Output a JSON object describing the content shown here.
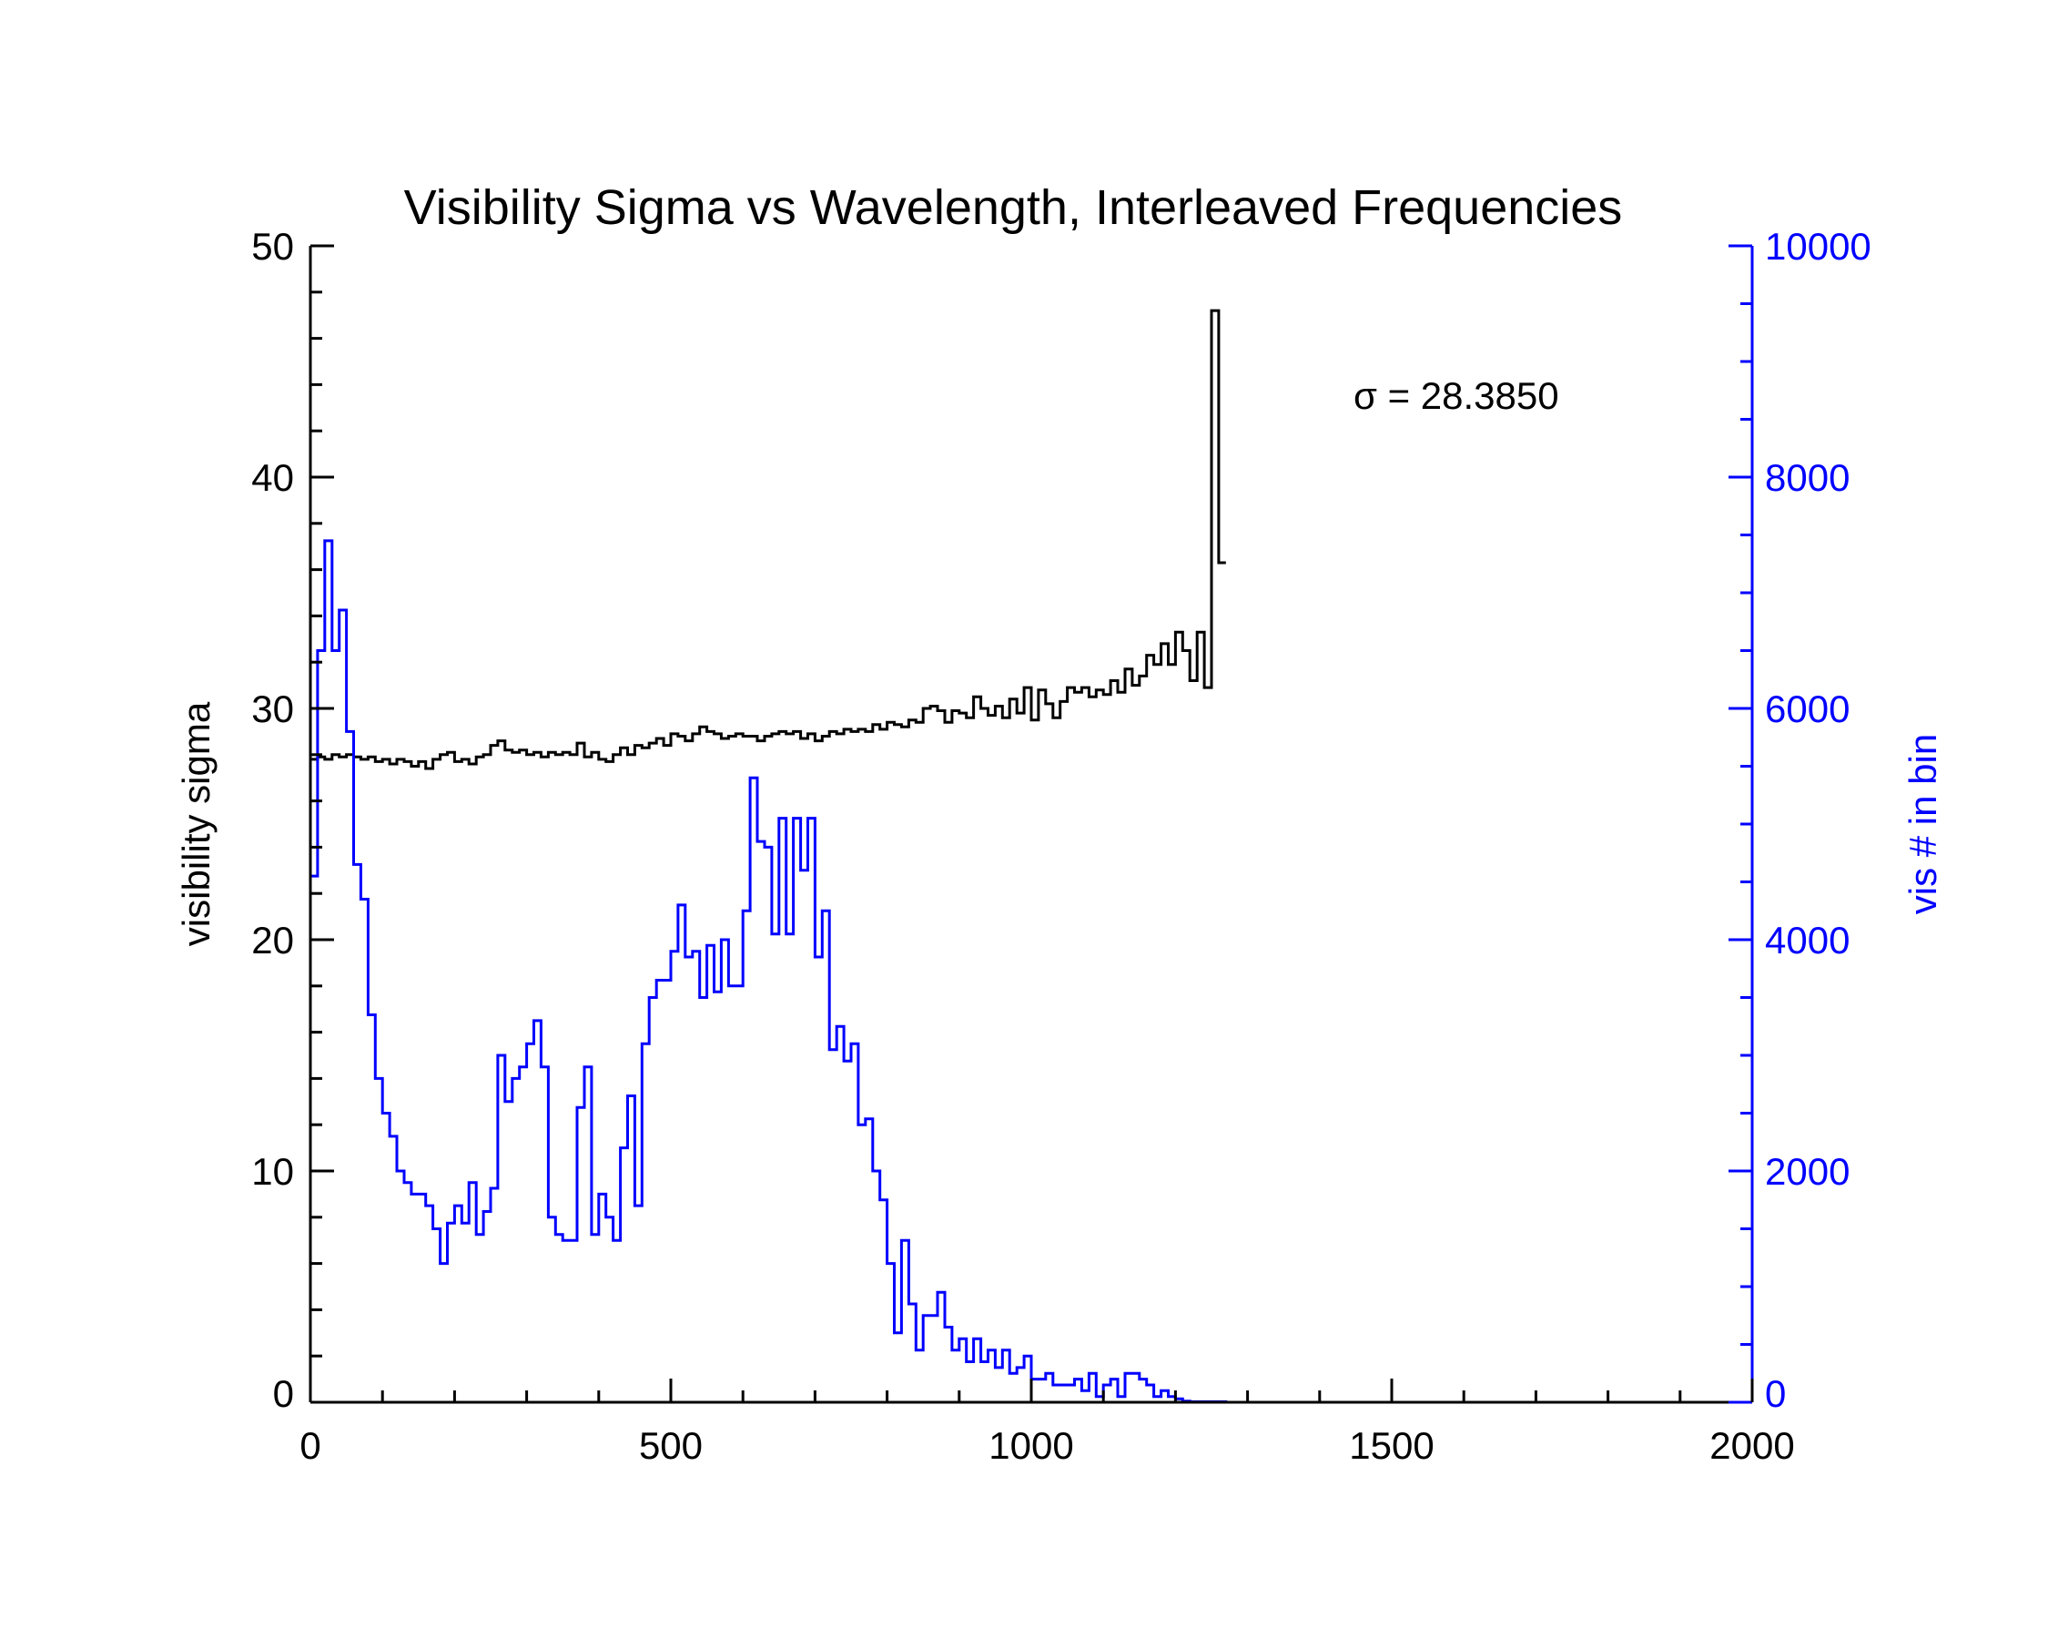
{
  "chart_data": {
    "type": "line",
    "title": "Visibility Sigma vs Wavelength, Interleaved Frequencies",
    "xlabel": "",
    "ylabel": "visibility sigma",
    "ylabel_right": "vis # in bin",
    "xlim": [
      0,
      2000
    ],
    "ylim": [
      0,
      50
    ],
    "ylim_right": [
      0,
      10000
    ],
    "x_ticks": [
      0,
      500,
      1000,
      1500,
      2000
    ],
    "y_ticks": [
      0,
      10,
      20,
      30,
      40,
      50
    ],
    "y_ticks_right": [
      0,
      2000,
      4000,
      6000,
      8000,
      10000
    ],
    "grid": false,
    "annotation": "σ = 28.3850",
    "bin_width": 10,
    "colors": {
      "sigma": "#000000",
      "counts": "#0000ff"
    },
    "series": [
      {
        "axis": "left",
        "color": "#000000",
        "x": [
          5,
          15,
          25,
          35,
          45,
          55,
          65,
          75,
          85,
          95,
          105,
          115,
          125,
          135,
          145,
          155,
          165,
          175,
          185,
          195,
          205,
          215,
          225,
          235,
          245,
          255,
          265,
          275,
          285,
          295,
          305,
          315,
          325,
          335,
          345,
          355,
          365,
          375,
          385,
          395,
          405,
          415,
          425,
          435,
          445,
          455,
          465,
          475,
          485,
          495,
          505,
          515,
          525,
          535,
          545,
          555,
          565,
          575,
          585,
          595,
          605,
          615,
          625,
          635,
          645,
          655,
          665,
          675,
          685,
          695,
          705,
          715,
          725,
          735,
          745,
          755,
          765,
          775,
          785,
          795,
          805,
          815,
          825,
          835,
          845,
          855,
          865,
          875,
          885,
          895,
          905,
          915,
          925,
          935,
          945,
          955,
          965,
          975,
          985,
          995,
          1005,
          1015,
          1025,
          1035,
          1045,
          1055,
          1065,
          1075,
          1085,
          1095,
          1105,
          1115,
          1125,
          1135,
          1145,
          1155,
          1165,
          1175,
          1185,
          1195,
          1205,
          1215,
          1225,
          1235,
          1245,
          1255,
          1265
        ],
        "values": [
          27.8,
          27.9,
          27.8,
          28.0,
          27.9,
          28.0,
          27.9,
          27.8,
          27.9,
          27.7,
          27.8,
          27.6,
          27.8,
          27.7,
          27.5,
          27.7,
          27.4,
          27.8,
          28.0,
          28.1,
          27.7,
          27.8,
          27.6,
          27.9,
          28.0,
          28.4,
          28.6,
          28.2,
          28.1,
          28.2,
          28.0,
          28.1,
          27.9,
          28.1,
          28.0,
          28.1,
          28.0,
          28.5,
          27.9,
          28.1,
          27.8,
          27.7,
          28.0,
          28.3,
          28.0,
          28.4,
          28.3,
          28.5,
          28.7,
          28.4,
          28.9,
          28.8,
          28.6,
          28.9,
          29.2,
          29.0,
          28.9,
          28.7,
          28.8,
          28.9,
          28.8,
          28.8,
          28.6,
          28.8,
          28.9,
          29.0,
          28.9,
          29.0,
          28.7,
          28.9,
          28.6,
          28.8,
          29.0,
          28.9,
          29.1,
          29.0,
          29.1,
          29.0,
          29.3,
          29.1,
          29.4,
          29.3,
          29.2,
          29.5,
          29.4,
          30.0,
          30.1,
          29.9,
          29.4,
          29.9,
          29.8,
          29.6,
          30.5,
          30.0,
          29.7,
          30.1,
          29.6,
          30.4,
          29.8,
          30.9,
          29.5,
          30.8,
          30.2,
          29.6,
          30.3,
          30.9,
          30.7,
          30.9,
          30.5,
          30.8,
          30.6,
          31.2,
          30.7,
          31.7,
          31.0,
          31.4,
          32.3,
          31.9,
          32.8,
          31.9,
          33.3,
          32.5,
          31.2,
          33.3,
          30.9,
          47.2,
          36.3
        ]
      },
      {
        "axis": "right",
        "color": "#0000ff",
        "x": [
          5,
          15,
          25,
          35,
          45,
          55,
          65,
          75,
          85,
          95,
          105,
          115,
          125,
          135,
          145,
          155,
          165,
          175,
          185,
          195,
          205,
          215,
          225,
          235,
          245,
          255,
          265,
          275,
          285,
          295,
          305,
          315,
          325,
          335,
          345,
          355,
          365,
          375,
          385,
          395,
          405,
          415,
          425,
          435,
          445,
          455,
          465,
          475,
          485,
          495,
          505,
          515,
          525,
          535,
          545,
          555,
          565,
          575,
          585,
          595,
          605,
          615,
          625,
          635,
          645,
          655,
          665,
          675,
          685,
          695,
          705,
          715,
          725,
          735,
          745,
          755,
          765,
          775,
          785,
          795,
          805,
          815,
          825,
          835,
          845,
          855,
          865,
          875,
          885,
          895,
          905,
          915,
          925,
          935,
          945,
          955,
          965,
          975,
          985,
          995,
          1005,
          1015,
          1025,
          1035,
          1045,
          1055,
          1065,
          1075,
          1085,
          1095,
          1105,
          1115,
          1125,
          1135,
          1145,
          1155,
          1165,
          1175,
          1185,
          1195,
          1205,
          1215,
          1225,
          1235,
          1245,
          1255,
          1265
        ],
        "values": [
          4550,
          6500,
          7450,
          6500,
          6850,
          5800,
          4650,
          4350,
          3350,
          2800,
          2500,
          2300,
          2000,
          1900,
          1800,
          1800,
          1700,
          1500,
          1200,
          1550,
          1700,
          1550,
          1900,
          1450,
          1650,
          1850,
          3000,
          2600,
          2800,
          2900,
          3100,
          3300,
          2900,
          1600,
          1450,
          1400,
          1400,
          2550,
          2900,
          1450,
          1800,
          1600,
          1400,
          2200,
          2650,
          1700,
          3100,
          3500,
          3650,
          3650,
          3900,
          4300,
          3850,
          3900,
          3500,
          3950,
          3550,
          4000,
          3600,
          3600,
          4250,
          5400,
          4850,
          4800,
          4050,
          5050,
          4050,
          5050,
          4600,
          5050,
          3850,
          4250,
          3050,
          3250,
          2950,
          3100,
          2400,
          2450,
          2000,
          1750,
          1200,
          600,
          1400,
          850,
          450,
          750,
          750,
          950,
          650,
          450,
          550,
          350,
          550,
          350,
          450,
          300,
          450,
          250,
          300,
          400,
          200,
          200,
          250,
          150,
          150,
          150,
          200,
          100,
          250,
          50,
          150,
          200,
          50,
          250,
          250,
          200,
          150,
          50,
          100,
          50,
          30,
          10,
          5,
          5,
          5,
          5,
          5
        ]
      }
    ]
  }
}
